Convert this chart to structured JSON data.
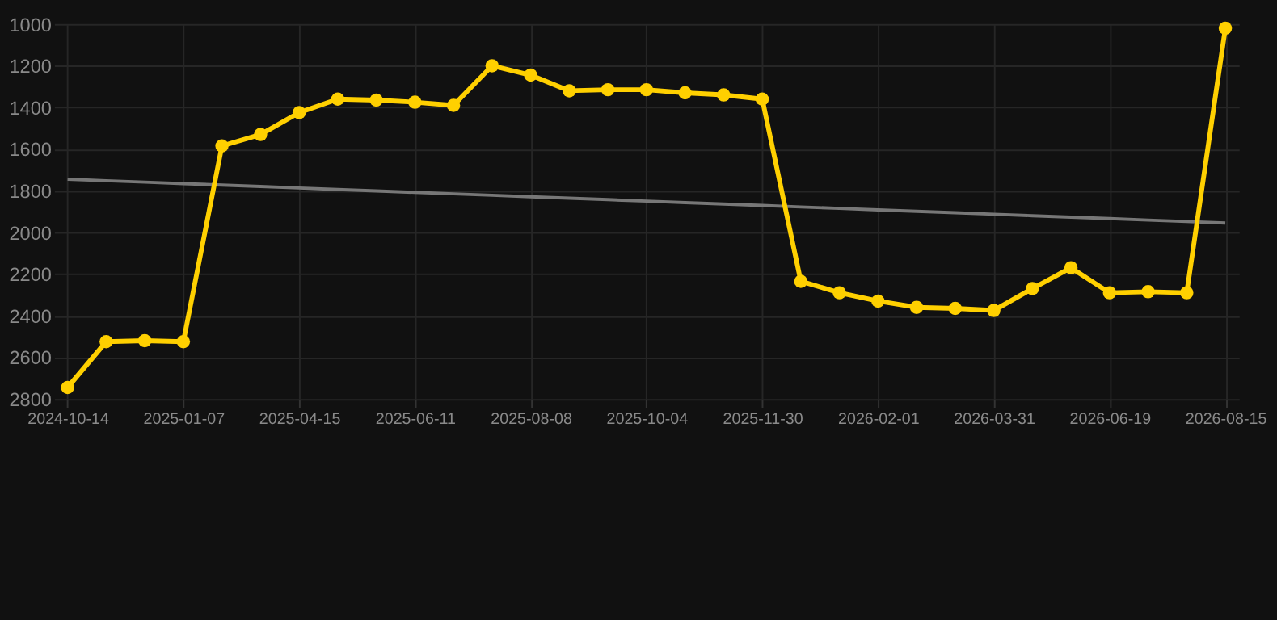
{
  "chart_data": {
    "type": "line",
    "categories": [
      "2024-10-14",
      null,
      null,
      "2025-01-07",
      null,
      null,
      "2025-04-15",
      null,
      null,
      "2025-06-11",
      null,
      null,
      "2025-08-08",
      null,
      null,
      "2025-10-04",
      null,
      null,
      "2025-11-30",
      null,
      null,
      "2026-02-01",
      null,
      null,
      "2026-03-31",
      null,
      null,
      "2026-06-19",
      null,
      null,
      "2026-08-15"
    ],
    "series": [
      {
        "color": "#ffd000",
        "marker": "circle",
        "values": [
          2745,
          2525,
          2520,
          2525,
          1585,
          1530,
          1425,
          1360,
          1365,
          1375,
          1390,
          1200,
          1245,
          1320,
          1315,
          1315,
          1330,
          1340,
          1360,
          2235,
          2290,
          2330,
          2360,
          2365,
          2375,
          2270,
          2170,
          2290,
          2285,
          2290,
          1020
        ]
      },
      {
        "type": "line",
        "color": "#777777",
        "marker": "none",
        "values": [
          1745,
          1752,
          1759,
          1766,
          1773,
          1780,
          1787,
          1794,
          1801,
          1808,
          1815,
          1822,
          1829,
          1836,
          1843,
          1850,
          1857,
          1864,
          1871,
          1878,
          1885,
          1892,
          1899,
          1906,
          1913,
          1920,
          1927,
          1934,
          1941,
          1948,
          1955
        ]
      }
    ],
    "ylim": [
      2800,
      1000
    ],
    "yticks": [
      1000,
      1200,
      1400,
      1600,
      1800,
      2000,
      2200,
      2400,
      2600,
      2800
    ],
    "grid": true
  }
}
